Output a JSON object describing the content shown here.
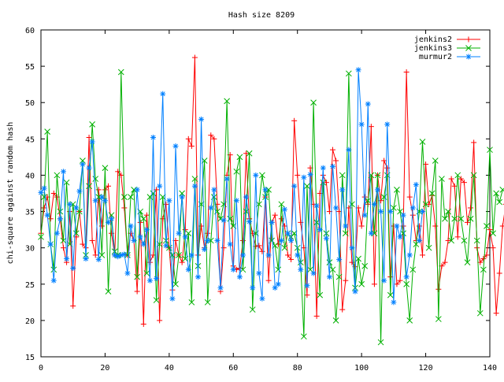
{
  "chart_data": {
    "type": "line",
    "title": "Hash size 8209",
    "xlabel": "",
    "ylabel": "chi-square against random hash",
    "xlim": [
      0,
      140
    ],
    "ylim": [
      15,
      60
    ],
    "xticks": [
      0,
      20,
      40,
      60,
      80,
      100,
      120,
      140
    ],
    "yticks": [
      15,
      20,
      25,
      30,
      35,
      40,
      45,
      50,
      55,
      60
    ],
    "grid": false,
    "legend_position": "top-right",
    "series": [
      {
        "name": "jenkins2",
        "color": "#ff0000",
        "marker": "plus",
        "values": [
          32,
          35.5,
          37,
          34,
          37.5,
          37,
          34,
          30,
          28,
          35,
          22,
          31.5,
          35,
          30.5,
          30,
          45.2,
          31,
          29,
          38,
          33,
          38,
          38.5,
          32,
          29,
          40.5,
          40,
          35.5,
          29,
          32,
          31,
          24,
          33.5,
          19.5,
          34.5,
          28,
          29,
          38,
          20,
          34,
          36,
          30,
          24.2,
          31,
          29,
          28,
          32.5,
          45,
          44,
          56.2,
          29,
          33,
          30,
          32,
          45.5,
          45,
          36,
          24,
          30,
          40,
          42.8,
          27.5,
          27,
          27.2,
          31,
          43,
          34,
          32,
          30.2,
          30.3,
          29.5,
          37,
          25.5,
          33.5,
          34.5,
          30.5,
          34,
          33,
          29,
          28.4,
          47.5,
          40,
          33.5,
          30,
          23.5,
          41,
          36,
          20.6,
          37.5,
          40,
          39,
          35,
          43.5,
          42,
          35,
          21.5,
          25.5,
          35.5,
          28,
          27.4,
          35.5,
          33,
          37,
          36,
          46.7,
          25,
          40,
          36.5,
          42,
          41,
          26,
          33,
          25,
          25.5,
          33,
          54.2,
          37,
          34.5,
          31,
          33,
          29,
          41.5,
          36,
          37.2,
          33,
          24.3,
          27.5,
          28,
          31,
          39.5,
          38.5,
          31.5,
          39.5,
          39,
          33.5,
          35.5,
          44.5,
          30,
          28,
          28.5,
          29,
          32.5,
          30,
          21,
          26.5,
          33,
          36,
          36.5,
          28,
          31,
          46.5,
          31
        ]
      },
      {
        "name": "jenkins3",
        "color": "#00b000",
        "marker": "cross",
        "values": [
          31.5,
          37,
          46,
          30.5,
          27,
          40,
          35,
          31,
          39,
          30.5,
          36,
          32,
          35,
          42,
          29,
          38.5,
          47,
          39.5,
          37,
          29,
          41,
          24,
          34.5,
          29.5,
          29,
          54.2,
          37,
          29,
          37,
          38,
          26,
          35,
          34,
          26.5,
          37,
          37.5,
          22.8,
          30.5,
          37,
          31,
          30,
          29,
          25,
          29,
          37.5,
          28.5,
          32,
          22.5,
          39.5,
          27.5,
          36,
          42,
          22.5,
          31,
          37,
          35,
          34,
          36,
          50.2,
          34,
          33,
          40.5,
          42.5,
          27,
          35,
          43,
          21.5,
          32,
          36,
          40,
          37,
          38,
          31,
          30.3,
          27,
          36,
          30,
          32,
          31.5,
          32,
          30,
          28,
          17.8,
          38.5,
          27,
          50,
          33.5,
          23.5,
          39,
          32,
          28,
          27,
          20,
          26,
          40,
          32,
          54,
          36,
          24.5,
          28.5,
          25,
          27.5,
          36.5,
          40,
          32,
          40,
          17,
          37,
          40,
          23.5,
          35.5,
          38,
          35,
          32,
          25,
          20,
          27,
          30.5,
          35,
          44.6,
          36,
          30,
          37.5,
          42,
          20.2,
          39.5,
          34,
          35,
          31,
          34,
          40,
          34,
          31,
          28,
          34,
          40,
          31,
          21,
          27,
          33,
          43.5,
          32,
          37.5,
          36.3,
          38
        ]
      },
      {
        "name": "murmur2",
        "color": "#0080ff",
        "marker": "star",
        "values": [
          37.6,
          38.2,
          34.5,
          30.5,
          25.5,
          32,
          34,
          40.5,
          28.5,
          36,
          27.2,
          35.5,
          37.8,
          41.5,
          28.5,
          41,
          44.6,
          36.5,
          28.4,
          37,
          36.5,
          33.5,
          34,
          29,
          28.8,
          29,
          29.1,
          26.5,
          33,
          31,
          38,
          31.5,
          30.5,
          32.5,
          25.5,
          45.2,
          25.8,
          38.5,
          51.2,
          30.3,
          36.5,
          23,
          44,
          32,
          37,
          31.5,
          27,
          29,
          38.5,
          26,
          47.7,
          29.8,
          31,
          35.5,
          38,
          31,
          24.5,
          33.8,
          39.5,
          30.5,
          27,
          36.5,
          26,
          29,
          37,
          33.6,
          24.5,
          40,
          26.5,
          23,
          38,
          29,
          33.5,
          24.5,
          25,
          31,
          35.3,
          32,
          31,
          38.5,
          29,
          27,
          39.7,
          24.8,
          40.1,
          26.5,
          35.8,
          32.5,
          41,
          31.3,
          26,
          41.2,
          35.5,
          28.4,
          38,
          33,
          43.5,
          30,
          24,
          54.5,
          47,
          34.5,
          49.8,
          32,
          36,
          38,
          35,
          25.5,
          47,
          35,
          22.5,
          33,
          31.5,
          34.5,
          26,
          29,
          35.5,
          38.7,
          31,
          35
        ]
      }
    ]
  }
}
